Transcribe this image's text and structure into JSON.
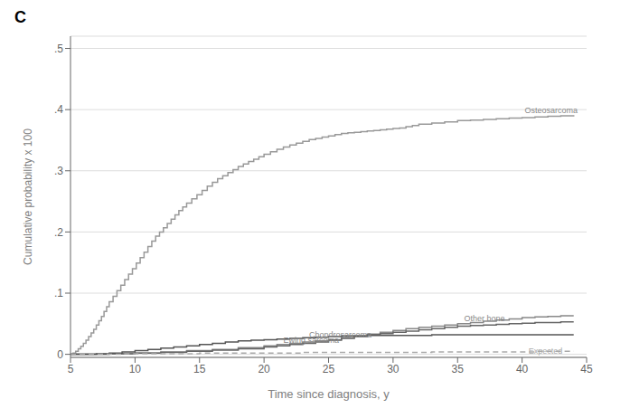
{
  "chart_data": {
    "type": "step",
    "title": "C",
    "xlabel": "Time since diagnosis, y",
    "ylabel": "Cumulative probability x 100",
    "xlim": [
      5,
      45
    ],
    "ylim": [
      -0.005,
      0.52
    ],
    "xticks": [
      5,
      10,
      15,
      20,
      25,
      30,
      35,
      40,
      45
    ],
    "yticks": [
      0,
      {
        "value": 0.1,
        "label": ".1"
      },
      {
        "value": 0.2,
        "label": ".2"
      },
      {
        "value": 0.3,
        "label": ".3"
      },
      {
        "value": 0.4,
        "label": ".4"
      },
      {
        "value": 0.5,
        "label": ".5"
      }
    ],
    "grid": true,
    "series": [
      {
        "color": "#999999",
        "line_style": "solid",
        "x": [
          5,
          5.2,
          5.4,
          5.6,
          5.8,
          6.0,
          6.2,
          6.4,
          6.6,
          6.8,
          7.0,
          7.2,
          7.4,
          7.6,
          7.8,
          8.0,
          8.3,
          8.6,
          8.9,
          9.2,
          9.5,
          9.8,
          10.1,
          10.4,
          10.7,
          11.0,
          11.3,
          11.6,
          11.9,
          12.2,
          12.5,
          12.8,
          13.1,
          13.4,
          13.7,
          14.0,
          14.4,
          14.8,
          15.2,
          15.6,
          16.0,
          16.4,
          16.8,
          17.2,
          17.6,
          18.0,
          18.4,
          18.8,
          19.2,
          19.6,
          20.0,
          20.5,
          21.0,
          21.5,
          22.0,
          22.5,
          23.0,
          23.5,
          24.0,
          24.5,
          25.0,
          25.5,
          26.0,
          26.5,
          27.0,
          27.5,
          28.0,
          28.5,
          29.0,
          29.5,
          30.0,
          30.5,
          31.0,
          31.5,
          32.0,
          33.0,
          34.0,
          35.0,
          36.0,
          37.0,
          38.0,
          39.0,
          40.0,
          41.0,
          42.0,
          43.0,
          44.0
        ],
        "values": [
          0.0,
          0.002,
          0.005,
          0.009,
          0.013,
          0.018,
          0.023,
          0.029,
          0.035,
          0.041,
          0.048,
          0.055,
          0.062,
          0.07,
          0.078,
          0.086,
          0.095,
          0.104,
          0.113,
          0.122,
          0.131,
          0.14,
          0.149,
          0.158,
          0.167,
          0.176,
          0.185,
          0.193,
          0.2,
          0.207,
          0.214,
          0.221,
          0.228,
          0.235,
          0.241,
          0.247,
          0.254,
          0.261,
          0.268,
          0.275,
          0.281,
          0.287,
          0.292,
          0.297,
          0.302,
          0.307,
          0.311,
          0.315,
          0.319,
          0.323,
          0.327,
          0.331,
          0.335,
          0.339,
          0.342,
          0.345,
          0.348,
          0.351,
          0.353,
          0.355,
          0.357,
          0.359,
          0.361,
          0.362,
          0.363,
          0.364,
          0.365,
          0.366,
          0.367,
          0.368,
          0.369,
          0.37,
          0.372,
          0.374,
          0.376,
          0.378,
          0.38,
          0.382,
          0.383,
          0.384,
          0.385,
          0.386,
          0.387,
          0.388,
          0.389,
          0.39,
          0.391
        ]
      },
      {
        "color": "#888888",
        "line_style": "solid",
        "x": [
          5,
          8,
          10,
          12,
          14,
          16,
          18,
          20,
          21,
          22,
          23,
          24,
          25,
          26,
          27,
          28,
          29,
          30,
          31,
          32,
          33,
          34,
          35,
          36,
          37,
          38,
          39,
          40,
          41,
          42,
          43,
          44
        ],
        "values": [
          0.0,
          0.001,
          0.002,
          0.004,
          0.006,
          0.008,
          0.011,
          0.014,
          0.016,
          0.018,
          0.02,
          0.022,
          0.024,
          0.027,
          0.03,
          0.033,
          0.036,
          0.039,
          0.042,
          0.044,
          0.046,
          0.048,
          0.05,
          0.052,
          0.054,
          0.056,
          0.058,
          0.06,
          0.061,
          0.062,
          0.063,
          0.063
        ]
      },
      {
        "color": "#666666",
        "line_style": "solid",
        "x": [
          5,
          8,
          10,
          12,
          14,
          16,
          18,
          20,
          21,
          22,
          23,
          24,
          25,
          26,
          27,
          28,
          29,
          30,
          31,
          32,
          33,
          34,
          35,
          36,
          37,
          38,
          39,
          40,
          41,
          42,
          43,
          44
        ],
        "values": [
          0.0,
          0.001,
          0.002,
          0.003,
          0.005,
          0.007,
          0.009,
          0.012,
          0.014,
          0.016,
          0.018,
          0.02,
          0.023,
          0.026,
          0.029,
          0.032,
          0.034,
          0.036,
          0.038,
          0.04,
          0.042,
          0.044,
          0.046,
          0.047,
          0.048,
          0.049,
          0.05,
          0.051,
          0.052,
          0.052,
          0.053,
          0.053
        ]
      },
      {
        "color": "#555555",
        "line_style": "solid",
        "x": [
          5,
          7,
          8,
          9,
          10,
          11,
          12,
          13,
          14,
          15,
          16,
          17,
          18,
          19,
          20,
          21,
          22,
          23,
          24,
          25,
          26,
          27,
          28,
          29,
          30,
          31,
          32,
          33,
          34,
          35,
          36,
          37,
          38,
          39,
          40,
          41,
          42,
          43,
          44
        ],
        "values": [
          0.0,
          0.001,
          0.002,
          0.004,
          0.006,
          0.008,
          0.01,
          0.012,
          0.014,
          0.016,
          0.018,
          0.02,
          0.022,
          0.023,
          0.024,
          0.025,
          0.026,
          0.027,
          0.028,
          0.029,
          0.03,
          0.03,
          0.031,
          0.031,
          0.031,
          0.031,
          0.031,
          0.032,
          0.032,
          0.032,
          0.032,
          0.032,
          0.032,
          0.032,
          0.032,
          0.032,
          0.032,
          0.032,
          0.032
        ]
      },
      {
        "color": "#aaaaaa",
        "line_style": "dashed",
        "x": [
          5,
          7,
          9,
          11,
          13,
          15,
          17,
          19,
          21,
          23,
          25,
          27,
          29,
          31,
          33,
          35,
          37,
          39,
          41,
          43,
          44
        ],
        "values": [
          0.0,
          0.0,
          0.001,
          0.001,
          0.001,
          0.002,
          0.002,
          0.002,
          0.002,
          0.003,
          0.003,
          0.003,
          0.003,
          0.003,
          0.004,
          0.004,
          0.004,
          0.004,
          0.005,
          0.005,
          0.005
        ]
      }
    ],
    "annotations": [
      {
        "text": "Osteosarcoma",
        "x": 40.2,
        "y": 0.395,
        "color": "#888888"
      },
      {
        "text": "Chondrosarcoma",
        "x": 23.5,
        "y": 0.028,
        "color": "#888888"
      },
      {
        "text": "Other bone",
        "x": 35.5,
        "y": 0.054,
        "color": "#888888"
      },
      {
        "text": "Ewing sarcoma",
        "x": 21.5,
        "y": 0.018,
        "color": "#888888"
      },
      {
        "text": "Expected",
        "x": 40.5,
        "y": 0.001,
        "color": "#aaaaaa"
      }
    ]
  }
}
